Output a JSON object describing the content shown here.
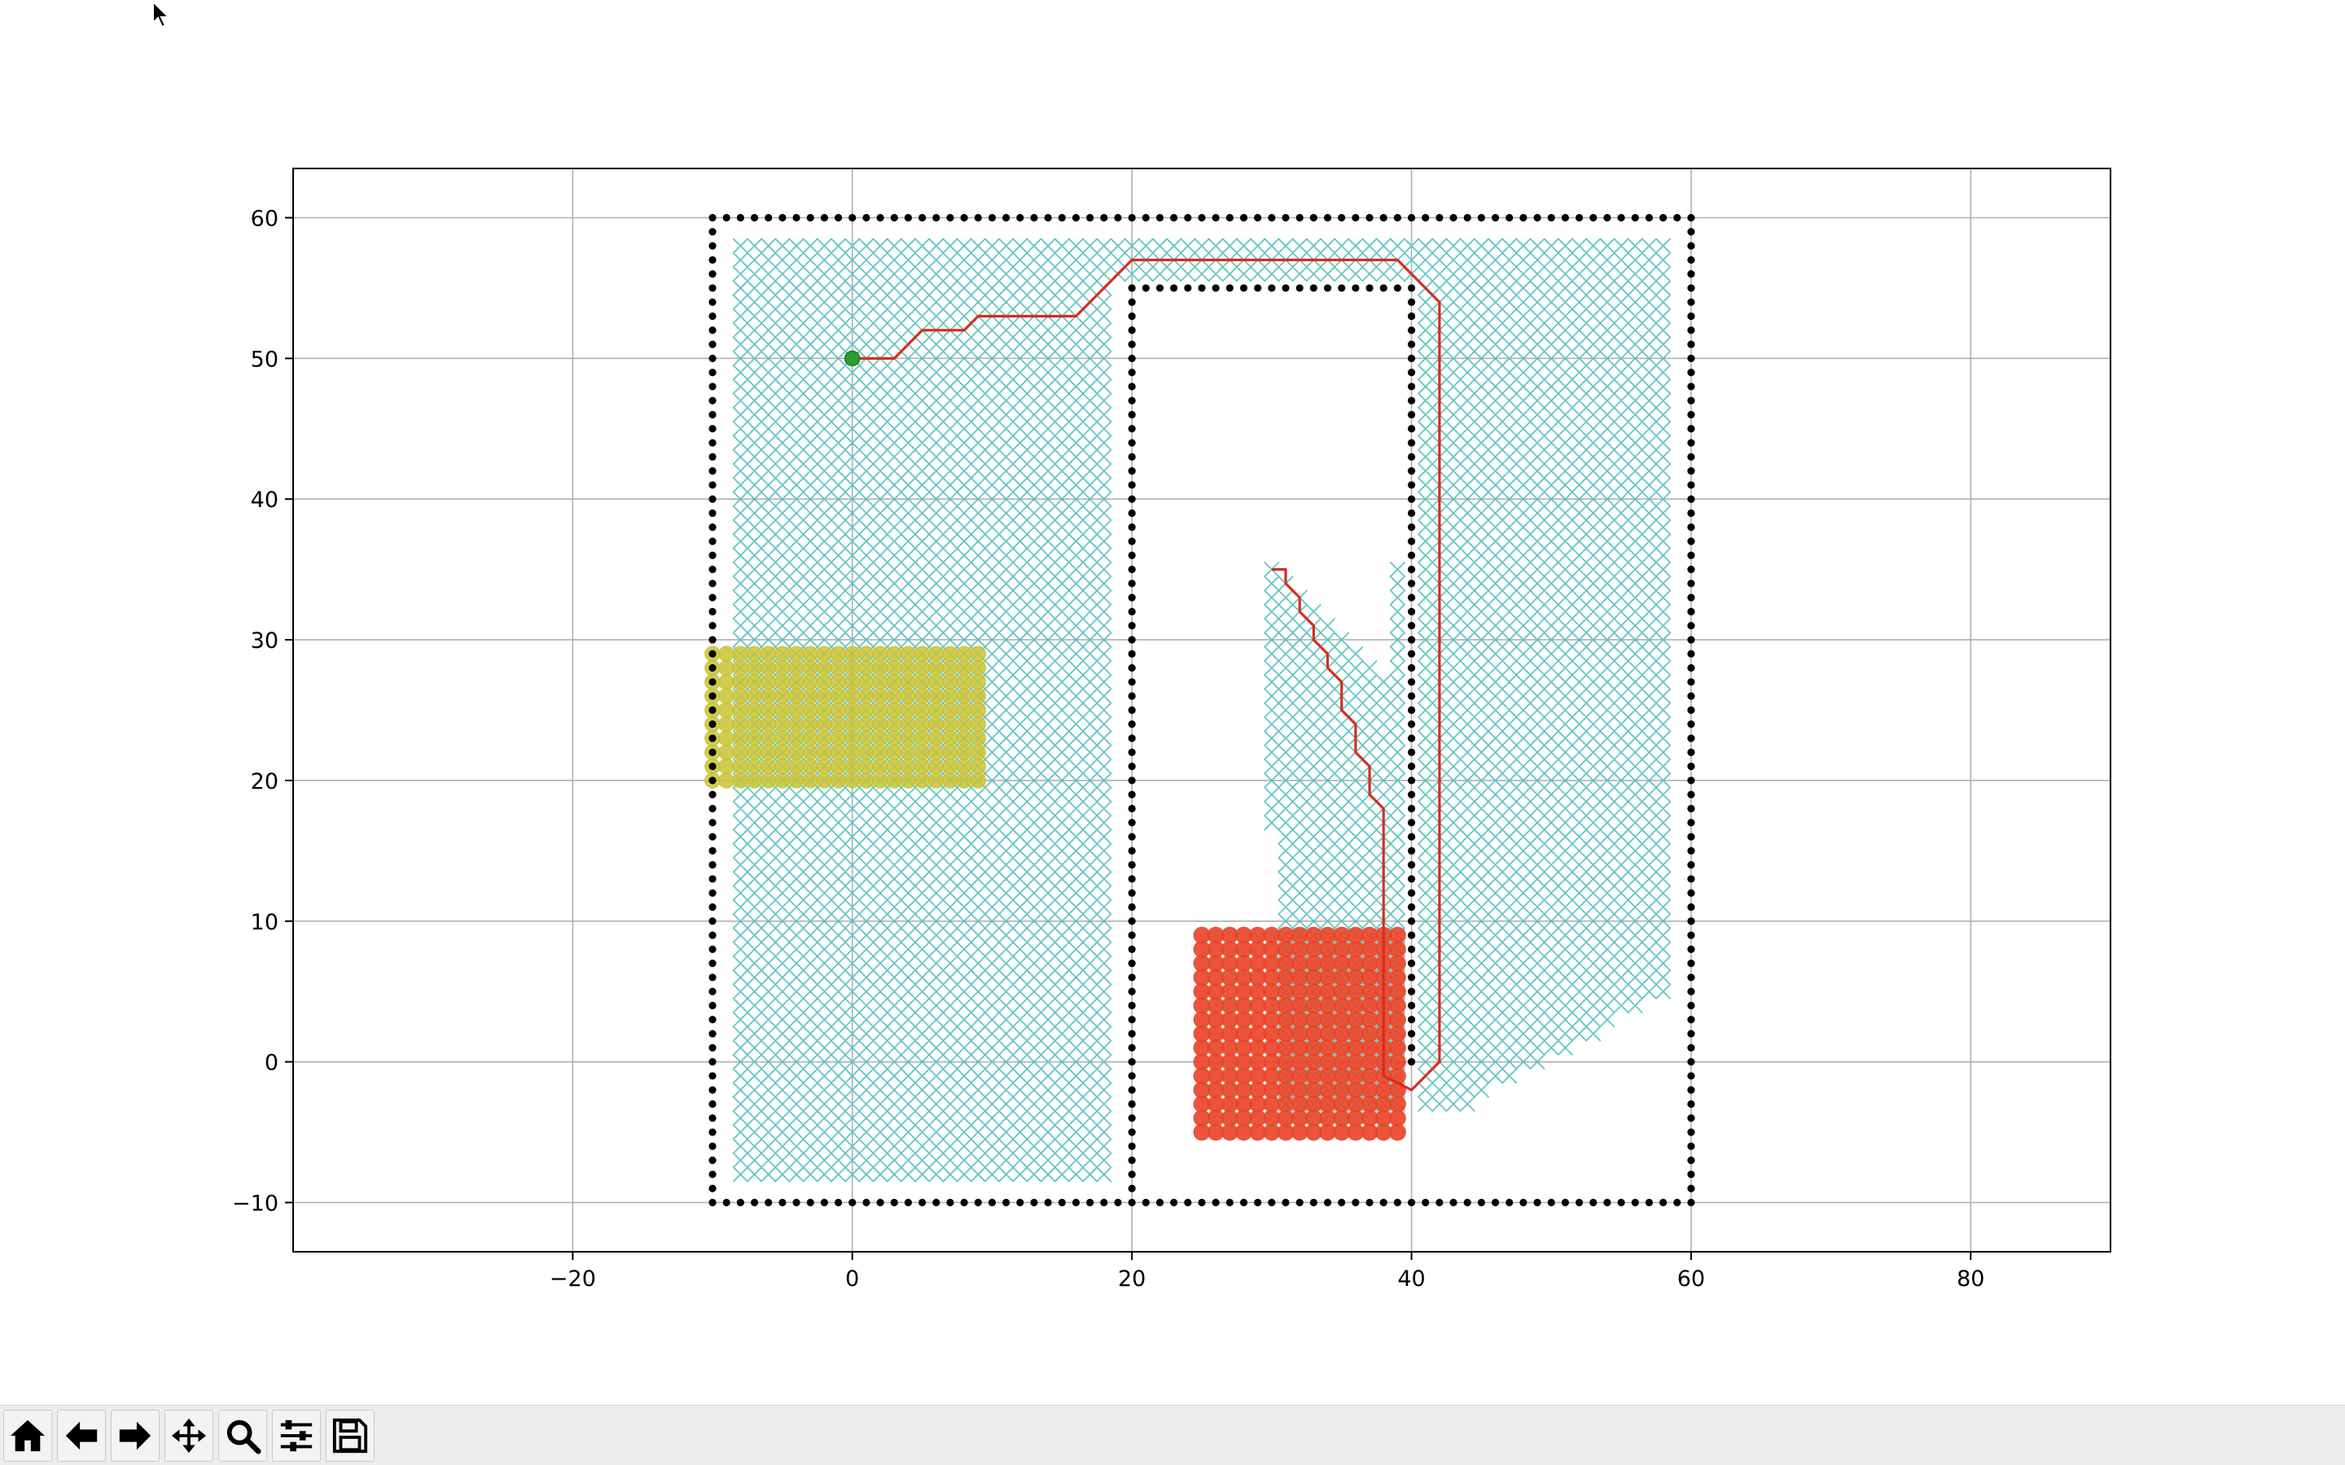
{
  "chart_data": {
    "type": "scatter",
    "title": "",
    "xlabel": "",
    "ylabel": "",
    "xlim": [
      -40,
      90
    ],
    "ylim": [
      -13.5,
      63.5
    ],
    "xticks": [
      -20,
      0,
      20,
      40,
      60,
      80
    ],
    "yticks": [
      -10,
      0,
      10,
      20,
      30,
      40,
      50,
      60
    ],
    "xtick_labels": [
      "−20",
      "0",
      "20",
      "40",
      "60",
      "80"
    ],
    "ytick_labels": [
      "−10",
      "0",
      "10",
      "20",
      "30",
      "40",
      "50",
      "60"
    ],
    "grid": true,
    "legend": "none",
    "series": [
      {
        "kind": "explored-x-markers",
        "color": "#5bc4c0",
        "step": 1,
        "regions": [
          {
            "x": [
              -8,
              18
            ],
            "y": [
              -8,
              58
            ]
          },
          {
            "x": [
              19,
              58
            ],
            "y": [
              56,
              58
            ]
          },
          {
            "x": [
              41,
              58
            ],
            "y": [
              5,
              55
            ]
          },
          {
            "x": [
              41,
              58
            ],
            "y": [
              -3,
              4
            ],
            "slope_cut": true
          },
          {
            "x": [
              30,
              39
            ],
            "y": [
              -3,
              35
            ],
            "triangle_cut": true
          }
        ]
      },
      {
        "kind": "start-region",
        "color": "#c8c234",
        "x": [
          -10,
          9
        ],
        "y": [
          20,
          29
        ]
      },
      {
        "kind": "goal-region",
        "color": "#e8452a",
        "x": [
          25,
          39
        ],
        "y": [
          -5,
          9
        ]
      },
      {
        "kind": "obstacles",
        "color": "#000000",
        "boundary": {
          "x": [
            -10,
            60
          ],
          "y": [
            -10,
            60
          ]
        },
        "inner_wall": {
          "x": [
            20,
            40
          ],
          "y": [
            0,
            55
          ]
        }
      },
      {
        "kind": "path",
        "color": "#d62d20",
        "points": [
          [
            0,
            50
          ],
          [
            3,
            50
          ],
          [
            5,
            52
          ],
          [
            8,
            52
          ],
          [
            9,
            53
          ],
          [
            16,
            53
          ],
          [
            20,
            57
          ],
          [
            39,
            57
          ],
          [
            42,
            54
          ],
          [
            42,
            0
          ],
          [
            40,
            -2
          ],
          [
            38,
            -1
          ],
          [
            38,
            18
          ],
          [
            37,
            19
          ],
          [
            37,
            21
          ],
          [
            36,
            22
          ],
          [
            36,
            24
          ],
          [
            35,
            25
          ],
          [
            35,
            27
          ],
          [
            34,
            28
          ],
          [
            34,
            29
          ],
          [
            33,
            30
          ],
          [
            33,
            31
          ],
          [
            32,
            32
          ],
          [
            32,
            33
          ],
          [
            31,
            34
          ],
          [
            31,
            35
          ],
          [
            30,
            35
          ]
        ]
      },
      {
        "kind": "start-marker",
        "color": "#2a9d2a",
        "points": [
          [
            0,
            50
          ]
        ]
      }
    ]
  },
  "toolbar": {
    "buttons": [
      {
        "name": "home-button",
        "icon": "home-icon"
      },
      {
        "name": "back-button",
        "icon": "arrow-left-icon"
      },
      {
        "name": "forward-button",
        "icon": "arrow-right-icon"
      },
      {
        "name": "pan-button",
        "icon": "move-icon"
      },
      {
        "name": "zoom-button",
        "icon": "magnifier-icon"
      },
      {
        "name": "configure-button",
        "icon": "sliders-icon"
      },
      {
        "name": "save-button",
        "icon": "floppy-disk-icon"
      }
    ]
  }
}
